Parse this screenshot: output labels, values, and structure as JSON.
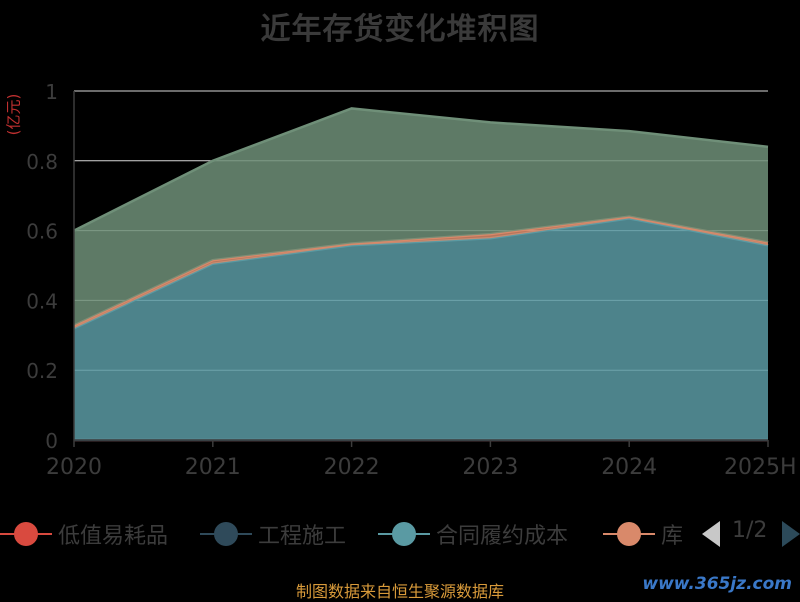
{
  "chart_data": {
    "type": "area",
    "title": "近年存货变化堆积图",
    "unit_label": "(亿元)",
    "categories": [
      "2020",
      "2021",
      "2022",
      "2023",
      "2024",
      "2025H"
    ],
    "ylim": [
      0,
      1
    ],
    "yticks": [
      "0",
      "0.2",
      "0.4",
      "0.6",
      "0.8",
      "1"
    ],
    "stacked": true,
    "grid": true,
    "series": [
      {
        "name": "低值易耗品",
        "color": "#d94a3f",
        "values": [
          0,
          0,
          0,
          0,
          0,
          0
        ]
      },
      {
        "name": "工程施工",
        "color": "#2f4a5a",
        "values": [
          0,
          0,
          0,
          0,
          0,
          0
        ]
      },
      {
        "name": "合同履约成本",
        "color": "#5a9aa3",
        "values": [
          0.32,
          0.505,
          0.558,
          0.578,
          0.635,
          0.558
        ]
      },
      {
        "name": "库存商品",
        "color": "#d9896a",
        "values": [
          0.008,
          0.01,
          0.005,
          0.012,
          0.005,
          0.008
        ]
      },
      {
        "name": "",
        "color": "#6f8f78",
        "values": [
          0.272,
          0.285,
          0.387,
          0.32,
          0.245,
          0.274
        ]
      }
    ],
    "legend_position": "bottom"
  },
  "legend": {
    "items": [
      {
        "label": "低值易耗品",
        "color": "#d94a3f"
      },
      {
        "label": "工程施工",
        "color": "#2f4a5a"
      },
      {
        "label": "合同履约成本",
        "color": "#5a9aa3"
      },
      {
        "label": "库",
        "color": "#d9896a"
      }
    ],
    "page": "1/2"
  },
  "footer": {
    "source": "制图数据来自恒生聚源数据库",
    "watermark": "www.365jz.com"
  }
}
